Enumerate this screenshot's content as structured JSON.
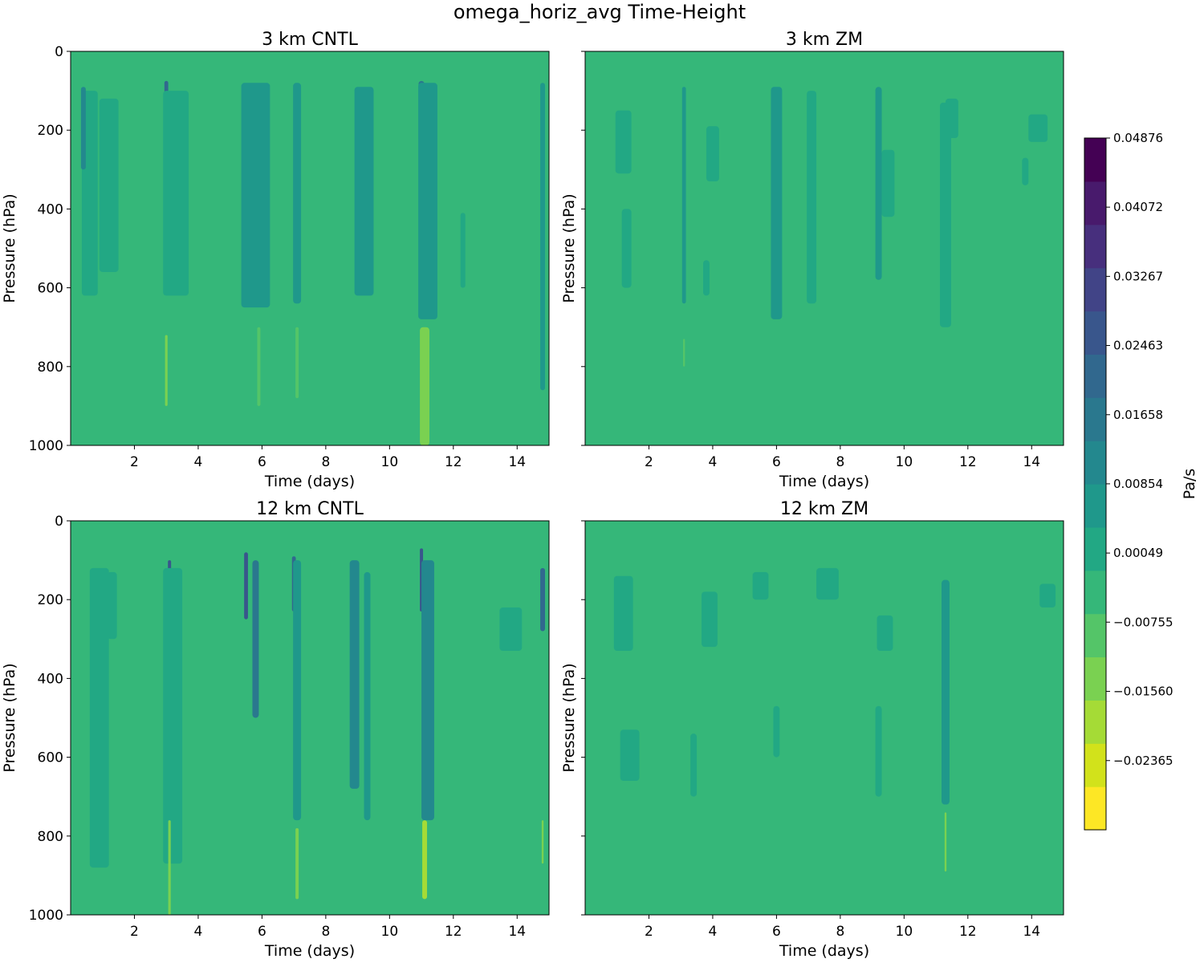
{
  "chart_data": {
    "type": "heatmap",
    "title": "omega_horiz_avg Time-Height",
    "panels": [
      {
        "title": "3 km CNTL",
        "xlabel": "Time (days)",
        "ylabel": "Pressure (hPa)",
        "show_ytick_labels": true,
        "features": [
          {
            "t": 0.6,
            "p_top": 100,
            "p_bot": 620,
            "dt": 0.5,
            "level": 1
          },
          {
            "t": 1.2,
            "p_top": 120,
            "p_bot": 560,
            "dt": 0.6,
            "level": 1
          },
          {
            "t": 0.4,
            "p_top": 90,
            "p_bot": 300,
            "dt": 0.15,
            "level": 3
          },
          {
            "t": 3.0,
            "p_top": 75,
            "p_bot": 240,
            "dt": 0.12,
            "level": 5
          },
          {
            "t": 3.3,
            "p_top": 100,
            "p_bot": 620,
            "dt": 0.8,
            "level": 1
          },
          {
            "t": 5.8,
            "p_top": 80,
            "p_bot": 650,
            "dt": 0.9,
            "level": 2
          },
          {
            "t": 7.1,
            "p_top": 80,
            "p_bot": 640,
            "dt": 0.25,
            "level": 2
          },
          {
            "t": 9.2,
            "p_top": 90,
            "p_bot": 620,
            "dt": 0.6,
            "level": 2
          },
          {
            "t": 11.0,
            "p_top": 75,
            "p_bot": 230,
            "dt": 0.18,
            "level": 4
          },
          {
            "t": 11.2,
            "p_top": 80,
            "p_bot": 680,
            "dt": 0.6,
            "level": 2
          },
          {
            "t": 12.3,
            "p_top": 410,
            "p_bot": 600,
            "dt": 0.15,
            "level": 1
          },
          {
            "t": 14.8,
            "p_top": 80,
            "p_bot": 860,
            "dt": 0.15,
            "level": 2
          },
          {
            "t": 3.0,
            "p_top": 720,
            "p_bot": 900,
            "dt": 0.08,
            "level": -2
          },
          {
            "t": 5.9,
            "p_top": 700,
            "p_bot": 900,
            "dt": 0.1,
            "level": -1
          },
          {
            "t": 7.1,
            "p_top": 700,
            "p_bot": 880,
            "dt": 0.1,
            "level": -1
          },
          {
            "t": 11.1,
            "p_top": 700,
            "p_bot": 1000,
            "dt": 0.3,
            "level": -2
          }
        ]
      },
      {
        "title": "3 km ZM",
        "xlabel": "Time (days)",
        "ylabel": "Pressure (hPa)",
        "show_ytick_labels": false,
        "features": [
          {
            "t": 1.2,
            "p_top": 150,
            "p_bot": 310,
            "dt": 0.5,
            "level": 1
          },
          {
            "t": 1.3,
            "p_top": 400,
            "p_bot": 600,
            "dt": 0.3,
            "level": 1
          },
          {
            "t": 3.1,
            "p_top": 90,
            "p_bot": 640,
            "dt": 0.12,
            "level": 2
          },
          {
            "t": 4.0,
            "p_top": 190,
            "p_bot": 330,
            "dt": 0.4,
            "level": 1
          },
          {
            "t": 3.8,
            "p_top": 530,
            "p_bot": 620,
            "dt": 0.2,
            "level": 1
          },
          {
            "t": 6.0,
            "p_top": 90,
            "p_bot": 680,
            "dt": 0.35,
            "level": 2
          },
          {
            "t": 7.1,
            "p_top": 100,
            "p_bot": 640,
            "dt": 0.3,
            "level": 1
          },
          {
            "t": 9.2,
            "p_top": 90,
            "p_bot": 580,
            "dt": 0.2,
            "level": 2
          },
          {
            "t": 9.5,
            "p_top": 250,
            "p_bot": 420,
            "dt": 0.4,
            "level": 1
          },
          {
            "t": 11.3,
            "p_top": 130,
            "p_bot": 700,
            "dt": 0.35,
            "level": 1
          },
          {
            "t": 11.5,
            "p_top": 120,
            "p_bot": 220,
            "dt": 0.4,
            "level": 1
          },
          {
            "t": 14.2,
            "p_top": 160,
            "p_bot": 230,
            "dt": 0.6,
            "level": 1
          },
          {
            "t": 13.8,
            "p_top": 270,
            "p_bot": 340,
            "dt": 0.2,
            "level": 1
          },
          {
            "t": 3.1,
            "p_top": 730,
            "p_bot": 800,
            "dt": 0.06,
            "level": -1
          }
        ]
      },
      {
        "title": "12 km CNTL",
        "xlabel": "Time (days)",
        "ylabel": "Pressure (hPa)",
        "show_ytick_labels": true,
        "features": [
          {
            "t": 0.9,
            "p_top": 120,
            "p_bot": 880,
            "dt": 0.6,
            "level": 1
          },
          {
            "t": 1.3,
            "p_top": 130,
            "p_bot": 300,
            "dt": 0.3,
            "level": 1
          },
          {
            "t": 3.1,
            "p_top": 100,
            "p_bot": 260,
            "dt": 0.1,
            "level": 6
          },
          {
            "t": 3.2,
            "p_top": 120,
            "p_bot": 870,
            "dt": 0.6,
            "level": 1
          },
          {
            "t": 5.5,
            "p_top": 80,
            "p_bot": 250,
            "dt": 0.12,
            "level": 6
          },
          {
            "t": 5.8,
            "p_top": 100,
            "p_bot": 500,
            "dt": 0.2,
            "level": 4
          },
          {
            "t": 7.0,
            "p_top": 90,
            "p_bot": 230,
            "dt": 0.12,
            "level": 5
          },
          {
            "t": 7.1,
            "p_top": 100,
            "p_bot": 760,
            "dt": 0.25,
            "level": 2
          },
          {
            "t": 8.9,
            "p_top": 100,
            "p_bot": 680,
            "dt": 0.3,
            "level": 3
          },
          {
            "t": 9.3,
            "p_top": 130,
            "p_bot": 760,
            "dt": 0.2,
            "level": 2
          },
          {
            "t": 11.0,
            "p_top": 70,
            "p_bot": 230,
            "dt": 0.1,
            "level": 6
          },
          {
            "t": 11.2,
            "p_top": 100,
            "p_bot": 760,
            "dt": 0.4,
            "level": 3
          },
          {
            "t": 13.8,
            "p_top": 220,
            "p_bot": 330,
            "dt": 0.7,
            "level": 1
          },
          {
            "t": 14.8,
            "p_top": 120,
            "p_bot": 280,
            "dt": 0.15,
            "level": 5
          },
          {
            "t": 3.1,
            "p_top": 760,
            "p_bot": 1000,
            "dt": 0.08,
            "level": -2
          },
          {
            "t": 7.1,
            "p_top": 780,
            "p_bot": 960,
            "dt": 0.1,
            "level": -2
          },
          {
            "t": 11.1,
            "p_top": 760,
            "p_bot": 960,
            "dt": 0.15,
            "level": -3
          },
          {
            "t": 14.8,
            "p_top": 760,
            "p_bot": 870,
            "dt": 0.06,
            "level": -2
          }
        ]
      },
      {
        "title": "12 km ZM",
        "xlabel": "Time (days)",
        "ylabel": "Pressure (hPa)",
        "show_ytick_labels": false,
        "features": [
          {
            "t": 1.2,
            "p_top": 140,
            "p_bot": 330,
            "dt": 0.6,
            "level": 1
          },
          {
            "t": 1.4,
            "p_top": 530,
            "p_bot": 660,
            "dt": 0.6,
            "level": 1
          },
          {
            "t": 3.9,
            "p_top": 180,
            "p_bot": 320,
            "dt": 0.5,
            "level": 1
          },
          {
            "t": 3.4,
            "p_top": 540,
            "p_bot": 700,
            "dt": 0.2,
            "level": 1
          },
          {
            "t": 5.5,
            "p_top": 130,
            "p_bot": 200,
            "dt": 0.5,
            "level": 1
          },
          {
            "t": 7.6,
            "p_top": 120,
            "p_bot": 200,
            "dt": 0.7,
            "level": 1
          },
          {
            "t": 6.0,
            "p_top": 470,
            "p_bot": 600,
            "dt": 0.2,
            "level": 1
          },
          {
            "t": 9.4,
            "p_top": 240,
            "p_bot": 330,
            "dt": 0.5,
            "level": 1
          },
          {
            "t": 9.2,
            "p_top": 470,
            "p_bot": 700,
            "dt": 0.2,
            "level": 1
          },
          {
            "t": 11.3,
            "p_top": 150,
            "p_bot": 720,
            "dt": 0.25,
            "level": 2
          },
          {
            "t": 14.5,
            "p_top": 160,
            "p_bot": 220,
            "dt": 0.5,
            "level": 1
          },
          {
            "t": 11.3,
            "p_top": 740,
            "p_bot": 890,
            "dt": 0.06,
            "level": -2
          }
        ]
      }
    ],
    "x_range": [
      0,
      15
    ],
    "x_ticks": [
      2,
      4,
      6,
      8,
      10,
      12,
      14
    ],
    "y_range": [
      1000,
      0
    ],
    "y_ticks": [
      0,
      200,
      400,
      600,
      800,
      1000
    ],
    "colorbar": {
      "label": "Pa/s",
      "vmin": -0.0317,
      "vmax": 0.04876,
      "ticks": [
        -0.02365,
        -0.0156,
        -0.00755,
        0.00049,
        0.00854,
        0.01658,
        0.02463,
        0.03267,
        0.04072,
        0.04876
      ],
      "tick_labels": [
        "−0.02365",
        "−0.01560",
        "−0.00755",
        "0.00049",
        "0.00854",
        "0.01658",
        "0.02463",
        "0.03267",
        "0.04072",
        "0.04876"
      ],
      "colors": [
        "#fde725",
        "#d2e21b",
        "#a5db36",
        "#7ad151",
        "#54c568",
        "#35b779",
        "#22a884",
        "#1f988b",
        "#23888e",
        "#2a788e",
        "#31688e",
        "#39568c",
        "#414487",
        "#472f7d",
        "#481a6c",
        "#440154"
      ],
      "background_index": 5
    }
  }
}
